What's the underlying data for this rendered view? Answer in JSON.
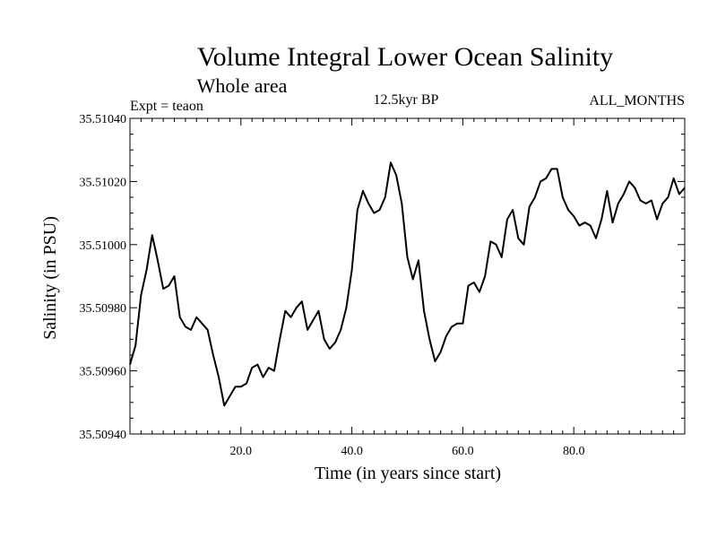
{
  "chart_data": {
    "type": "line",
    "title": "Volume Integral Lower Ocean Salinity",
    "subtitle": "Whole area",
    "experiment": "Expt = teaon",
    "period": "12.5kyr BP",
    "months": "ALL_MONTHS",
    "xlabel": "Time (in years since start)",
    "ylabel": "Salinity (in PSU)",
    "xlim": [
      0,
      100
    ],
    "ylim": [
      35.5094,
      35.5104
    ],
    "x_ticks": [
      20,
      40,
      60,
      80
    ],
    "x_tick_labels": [
      "20.0",
      "40.0",
      "60.0",
      "80.0"
    ],
    "y_ticks": [
      35.5094,
      35.5096,
      35.5098,
      35.51,
      35.5102,
      35.5104
    ],
    "y_tick_labels": [
      "35.50940",
      "35.50960",
      "35.50980",
      "35.51000",
      "35.51020",
      "35.51040"
    ],
    "grid": false,
    "series": [
      {
        "name": "Salinity",
        "x": [
          0,
          1,
          2,
          3,
          4,
          5,
          6,
          7,
          8,
          9,
          10,
          11,
          12,
          13,
          14,
          15,
          16,
          17,
          18,
          19,
          20,
          21,
          22,
          23,
          24,
          25,
          26,
          27,
          28,
          29,
          30,
          31,
          32,
          33,
          34,
          35,
          36,
          37,
          38,
          39,
          40,
          41,
          42,
          43,
          44,
          45,
          46,
          47,
          48,
          49,
          50,
          51,
          52,
          53,
          54,
          55,
          56,
          57,
          58,
          59,
          60,
          61,
          62,
          63,
          64,
          65,
          66,
          67,
          68,
          69,
          70,
          71,
          72,
          73,
          74,
          75,
          76,
          77,
          78,
          79,
          80,
          81,
          82,
          83,
          84,
          85,
          86,
          87,
          88,
          89,
          90,
          91,
          92,
          93,
          94,
          95,
          96,
          97,
          98,
          99,
          100
        ],
        "values": [
          35.50962,
          35.50968,
          35.50984,
          35.50992,
          35.51003,
          35.50995,
          35.50986,
          35.50987,
          35.5099,
          35.50977,
          35.50974,
          35.50973,
          35.50977,
          35.50975,
          35.50973,
          35.50965,
          35.50958,
          35.50949,
          35.50952,
          35.50955,
          35.50955,
          35.50956,
          35.50961,
          35.50962,
          35.50958,
          35.50961,
          35.5096,
          35.5097,
          35.50979,
          35.50977,
          35.5098,
          35.50982,
          35.50973,
          35.50976,
          35.50979,
          35.5097,
          35.50967,
          35.50969,
          35.50973,
          35.5098,
          35.50992,
          35.51011,
          35.51017,
          35.51013,
          35.5101,
          35.51011,
          35.51015,
          35.51026,
          35.51022,
          35.51013,
          35.50996,
          35.50989,
          35.50995,
          35.50979,
          35.5097,
          35.50963,
          35.50966,
          35.50971,
          35.50974,
          35.50975,
          35.50975,
          35.50987,
          35.50988,
          35.50985,
          35.5099,
          35.51001,
          35.51,
          35.50996,
          35.51008,
          35.51011,
          35.51002,
          35.51,
          35.51012,
          35.51015,
          35.5102,
          35.51021,
          35.51024,
          35.51024,
          35.51015,
          35.51011,
          35.51009,
          35.51006,
          35.51007,
          35.51006,
          35.51002,
          35.51008,
          35.51017,
          35.51007,
          35.51013,
          35.51016,
          35.5102,
          35.51018,
          35.51014,
          35.51013,
          35.51014,
          35.51008,
          35.51013,
          35.51015,
          35.51021,
          35.51016,
          35.51018
        ]
      }
    ]
  }
}
